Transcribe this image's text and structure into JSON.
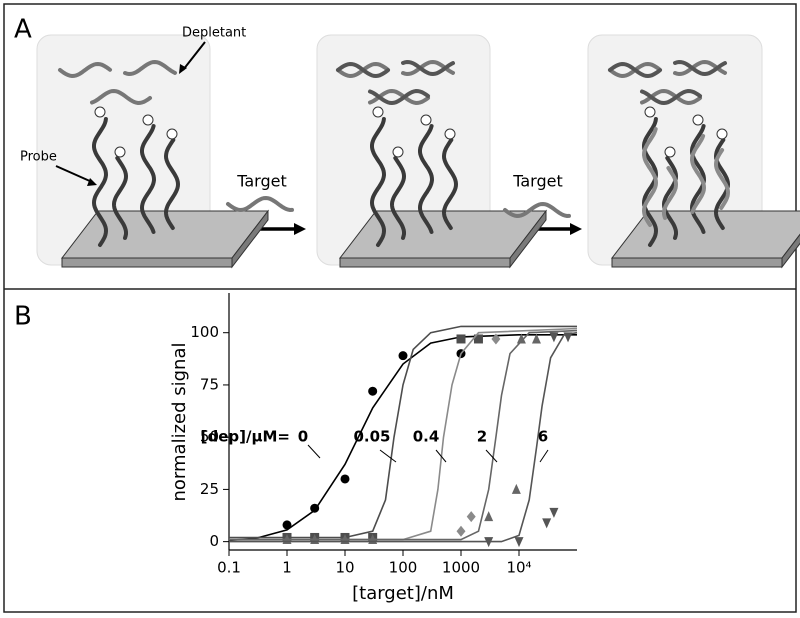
{
  "diagram": {
    "panel_label": "A",
    "depletant_label": "Depletant",
    "probe_label": "Probe",
    "arrows": [
      "Target",
      "Target"
    ]
  },
  "chart_data": {
    "type": "scatter",
    "panel_label": "B",
    "xlabel": "[target]/nM",
    "ylabel": "normalized signal",
    "annotation_prefix": "[dep]/μM=",
    "xscale": "log",
    "xlim": [
      0.1,
      100000
    ],
    "xticks": [
      0.1,
      1,
      10,
      100,
      1000,
      {
        "value": 10000,
        "label": "10⁴"
      }
    ],
    "ylim": [
      -4,
      119
    ],
    "yticks": [
      0,
      25,
      50,
      75,
      100
    ],
    "series": [
      {
        "label": "0",
        "marker": "circle",
        "color": "#000000",
        "x": [
          1,
          3,
          10,
          30,
          100,
          1000
        ],
        "values": [
          8,
          16,
          30,
          72,
          89,
          90
        ],
        "fit_x": [
          0.1,
          0.3,
          1,
          3,
          10,
          30,
          100,
          300,
          1000,
          10000,
          100000
        ],
        "fit_y": [
          0.6,
          1.7,
          5.6,
          15,
          37,
          64,
          85,
          95,
          98,
          99,
          99
        ]
      },
      {
        "label": "0.05",
        "marker": "square",
        "color": "#4d4d4d",
        "x": [
          1,
          3,
          10,
          30,
          1000,
          2000
        ],
        "values": [
          2,
          2,
          2,
          2,
          97,
          97
        ],
        "fit_x": [
          0.1,
          10,
          30,
          50,
          70,
          100,
          150,
          300,
          1000,
          100000
        ],
        "fit_y": [
          2,
          2,
          5,
          20,
          50,
          75,
          92,
          100,
          103,
          103
        ]
      },
      {
        "label": "0.4",
        "marker": "diamond",
        "color": "#8a8a8a",
        "x": [
          1000,
          1500,
          4000
        ],
        "values": [
          5,
          12,
          97
        ],
        "fit_x": [
          0.1,
          100,
          300,
          400,
          500,
          700,
          1000,
          2000,
          100000
        ],
        "fit_y": [
          1,
          1,
          5,
          25,
          50,
          75,
          90,
          100,
          102
        ]
      },
      {
        "label": "2",
        "marker": "triangle",
        "color": "#666666",
        "x": [
          1,
          3,
          10,
          30,
          3000,
          9000,
          11000,
          20000
        ],
        "values": [
          1,
          1,
          1,
          1,
          12,
          25,
          97,
          97
        ],
        "fit_x": [
          0.1,
          1000,
          2000,
          3000,
          4000,
          5000,
          7000,
          15000,
          100000
        ],
        "fit_y": [
          1,
          1,
          5,
          25,
          50,
          70,
          90,
          100,
          101
        ]
      },
      {
        "label": "6",
        "marker": "triangle-down",
        "color": "#555555",
        "x": [
          3000,
          10000,
          30000,
          40000,
          40000,
          70000
        ],
        "values": [
          0,
          0,
          9,
          14,
          98,
          98
        ],
        "fit_x": [
          0.1,
          5000,
          10000,
          15000,
          20000,
          25000,
          35000,
          60000,
          100000
        ],
        "fit_y": [
          0,
          0,
          3,
          20,
          45,
          65,
          88,
          99,
          100
        ]
      }
    ]
  }
}
